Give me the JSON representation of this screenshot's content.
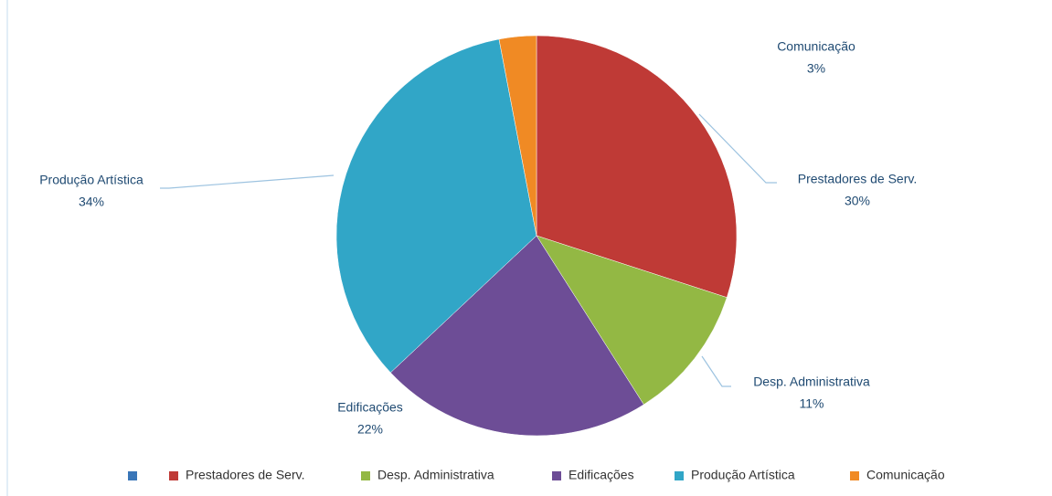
{
  "chart_data": {
    "type": "pie",
    "categories": [
      null,
      "Prestadores de Serv.",
      "Desp. Administrativa",
      "Edificações",
      "Produção Artística",
      "Comunicação"
    ],
    "values": [
      null,
      30,
      11,
      22,
      34,
      3
    ],
    "value_labels": [
      null,
      "30%",
      "11%",
      "22%",
      "34%",
      "3%"
    ],
    "colors": [
      "#3a76b8",
      "#bf3a36",
      "#93b844",
      "#6d4d96",
      "#31a6c7",
      "#f08a24"
    ],
    "legend": "bottom"
  }
}
